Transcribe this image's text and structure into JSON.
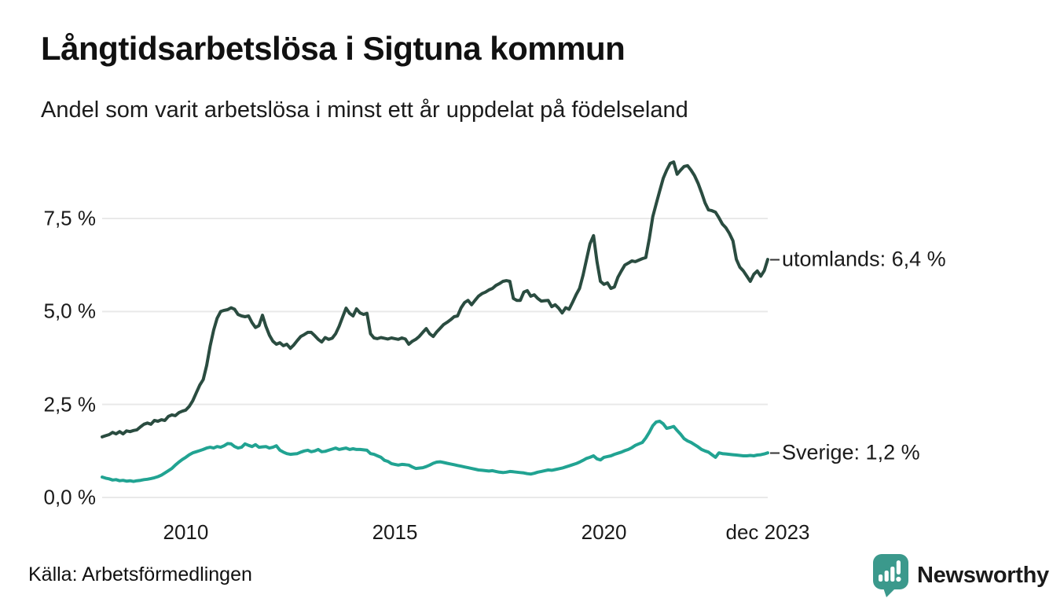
{
  "header": {
    "title": "Långtidsarbetslösa i Sigtuna kommun",
    "subtitle": "Andel som varit arbetslösa i minst ett år uppdelat på födelseland"
  },
  "footer": {
    "source": "Källa: Arbetsförmedlingen",
    "brand": "Newsworthy"
  },
  "colors": {
    "utomlands_line": "#2a4c40",
    "sverige_line": "#21a392",
    "gridline": "#e9e9e9",
    "axis_text": "#1a1a1a",
    "label_dash": "#333333",
    "brand_teal": "#3b998c"
  },
  "chart_data": {
    "type": "line",
    "title": "Långtidsarbetslösa i Sigtuna kommun",
    "subtitle": "Andel som varit arbetslösa i minst ett år uppdelat på födelseland",
    "x_unit": "monthly",
    "x_range": [
      2008.0,
      2023.9167
    ],
    "ylim": [
      0,
      9.2
    ],
    "grid": "horizontal",
    "legend_position": "end-of-line-labels",
    "y_ticks": [
      {
        "value": 0.0,
        "label": "0,0 %"
      },
      {
        "value": 2.5,
        "label": "2,5 %"
      },
      {
        "value": 5.0,
        "label": "5,0 %"
      },
      {
        "value": 7.5,
        "label": "7,5 %"
      }
    ],
    "x_ticks": [
      {
        "value": 2010,
        "label": "2010"
      },
      {
        "value": 2015,
        "label": "2015"
      },
      {
        "value": 2020,
        "label": "2020"
      },
      {
        "value": 2023.9167,
        "label": "dec 2023"
      }
    ],
    "series": [
      {
        "name": "utomlands",
        "label": "utomlands: 6,4 %",
        "last_value_label": "6,4 %",
        "color": "#2a4c40",
        "values": [
          1.63,
          1.66,
          1.69,
          1.75,
          1.71,
          1.77,
          1.71,
          1.79,
          1.77,
          1.8,
          1.82,
          1.9,
          1.97,
          2.0,
          1.97,
          2.07,
          2.05,
          2.09,
          2.07,
          2.18,
          2.22,
          2.2,
          2.28,
          2.32,
          2.35,
          2.45,
          2.6,
          2.81,
          3.02,
          3.17,
          3.55,
          4.08,
          4.5,
          4.82,
          5.0,
          5.03,
          5.05,
          5.1,
          5.06,
          4.92,
          4.88,
          4.86,
          4.88,
          4.7,
          4.57,
          4.62,
          4.9,
          4.6,
          4.36,
          4.2,
          4.12,
          4.16,
          4.08,
          4.12,
          4.01,
          4.1,
          4.22,
          4.33,
          4.38,
          4.44,
          4.44,
          4.35,
          4.25,
          4.18,
          4.3,
          4.25,
          4.28,
          4.4,
          4.6,
          4.85,
          5.09,
          4.95,
          4.88,
          5.07,
          4.96,
          4.92,
          4.95,
          4.4,
          4.29,
          4.27,
          4.3,
          4.28,
          4.26,
          4.29,
          4.27,
          4.25,
          4.29,
          4.26,
          4.12,
          4.2,
          4.25,
          4.33,
          4.44,
          4.54,
          4.4,
          4.33,
          4.45,
          4.55,
          4.65,
          4.71,
          4.78,
          4.86,
          4.88,
          5.1,
          5.24,
          5.3,
          5.18,
          5.3,
          5.41,
          5.48,
          5.52,
          5.58,
          5.62,
          5.7,
          5.75,
          5.81,
          5.83,
          5.81,
          5.35,
          5.3,
          5.3,
          5.52,
          5.56,
          5.41,
          5.45,
          5.35,
          5.28,
          5.29,
          5.3,
          5.13,
          5.18,
          5.09,
          4.96,
          5.1,
          5.06,
          5.25,
          5.45,
          5.62,
          5.98,
          6.4,
          6.82,
          7.04,
          6.34,
          5.81,
          5.73,
          5.77,
          5.62,
          5.66,
          5.92,
          6.09,
          6.25,
          6.3,
          6.36,
          6.34,
          6.38,
          6.42,
          6.45,
          6.95,
          7.55,
          7.9,
          8.24,
          8.58,
          8.8,
          8.98,
          9.02,
          8.69,
          8.8,
          8.9,
          8.92,
          8.8,
          8.65,
          8.45,
          8.2,
          7.92,
          7.73,
          7.71,
          7.67,
          7.52,
          7.35,
          7.25,
          7.1,
          6.9,
          6.4,
          6.19,
          6.09,
          5.95,
          5.81,
          6.0,
          6.09,
          5.95,
          6.1,
          6.4
        ]
      },
      {
        "name": "Sverige",
        "label": "Sverige: 1,2 %",
        "last_value_label": "1,2 %",
        "color": "#21a392",
        "values": [
          0.55,
          0.52,
          0.5,
          0.47,
          0.48,
          0.45,
          0.46,
          0.44,
          0.45,
          0.43,
          0.45,
          0.46,
          0.48,
          0.49,
          0.51,
          0.53,
          0.56,
          0.6,
          0.66,
          0.72,
          0.78,
          0.87,
          0.95,
          1.02,
          1.08,
          1.15,
          1.2,
          1.23,
          1.26,
          1.29,
          1.33,
          1.35,
          1.33,
          1.37,
          1.35,
          1.39,
          1.45,
          1.44,
          1.37,
          1.33,
          1.35,
          1.44,
          1.4,
          1.37,
          1.42,
          1.35,
          1.36,
          1.37,
          1.33,
          1.35,
          1.39,
          1.27,
          1.22,
          1.18,
          1.16,
          1.17,
          1.18,
          1.22,
          1.25,
          1.27,
          1.23,
          1.25,
          1.29,
          1.23,
          1.24,
          1.27,
          1.3,
          1.33,
          1.29,
          1.31,
          1.33,
          1.29,
          1.31,
          1.29,
          1.29,
          1.28,
          1.27,
          1.18,
          1.16,
          1.12,
          1.08,
          1.0,
          0.97,
          0.91,
          0.89,
          0.87,
          0.89,
          0.88,
          0.87,
          0.82,
          0.78,
          0.79,
          0.8,
          0.83,
          0.87,
          0.92,
          0.95,
          0.96,
          0.94,
          0.92,
          0.9,
          0.88,
          0.86,
          0.84,
          0.82,
          0.8,
          0.78,
          0.76,
          0.74,
          0.73,
          0.72,
          0.71,
          0.72,
          0.7,
          0.68,
          0.67,
          0.68,
          0.7,
          0.69,
          0.68,
          0.67,
          0.66,
          0.64,
          0.63,
          0.65,
          0.68,
          0.7,
          0.72,
          0.74,
          0.73,
          0.75,
          0.77,
          0.79,
          0.82,
          0.85,
          0.88,
          0.91,
          0.95,
          1.0,
          1.05,
          1.08,
          1.12,
          1.04,
          1.01,
          1.08,
          1.1,
          1.12,
          1.16,
          1.19,
          1.22,
          1.26,
          1.29,
          1.34,
          1.4,
          1.44,
          1.48,
          1.6,
          1.75,
          1.93,
          2.03,
          2.05,
          1.98,
          1.86,
          1.88,
          1.91,
          1.8,
          1.7,
          1.58,
          1.52,
          1.48,
          1.42,
          1.36,
          1.29,
          1.25,
          1.22,
          1.15,
          1.08,
          1.2,
          1.18,
          1.17,
          1.16,
          1.15,
          1.14,
          1.13,
          1.12,
          1.12,
          1.13,
          1.12,
          1.14,
          1.15,
          1.17,
          1.2
        ]
      }
    ]
  }
}
